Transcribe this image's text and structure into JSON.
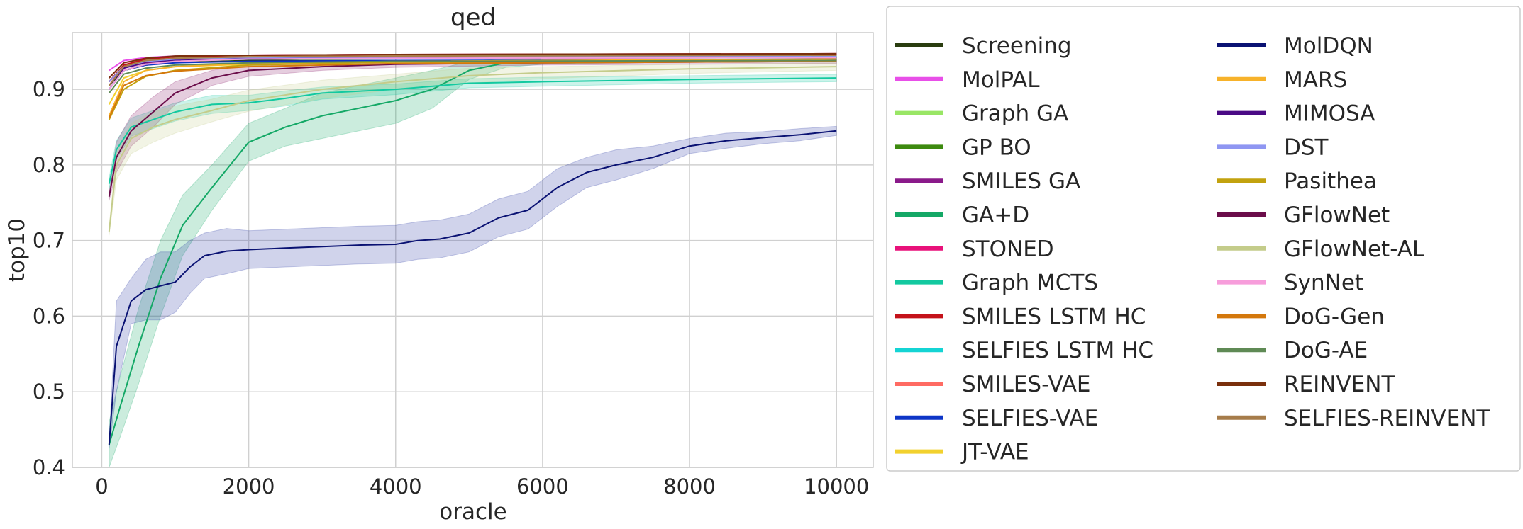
{
  "chart_data": {
    "type": "line",
    "title": "qed",
    "xlabel": "oracle",
    "ylabel": "top10",
    "xlim": [
      -400,
      10500
    ],
    "ylim": [
      0.4,
      0.975
    ],
    "xticks": [
      0,
      2000,
      4000,
      6000,
      8000,
      10000
    ],
    "xtick_labels": [
      "0",
      "2000",
      "4000",
      "6000",
      "8000",
      "10000"
    ],
    "yticks": [
      0.4,
      0.5,
      0.6,
      0.7,
      0.8,
      0.9
    ],
    "ytick_labels": [
      "0.4",
      "0.5",
      "0.6",
      "0.7",
      "0.8",
      "0.9"
    ],
    "grid": true,
    "legend_position": "outside-right",
    "series": [
      {
        "name": "Screening",
        "color": "#2a3d10",
        "x": [
          100,
          300,
          600,
          1000,
          2000,
          4000,
          10000
        ],
        "y": [
          0.905,
          0.925,
          0.932,
          0.936,
          0.938,
          0.938,
          0.938
        ]
      },
      {
        "name": "MolPAL",
        "color": "#e84fe8",
        "x": [
          100,
          300,
          600,
          1000,
          2000,
          4000,
          10000
        ],
        "y": [
          0.925,
          0.938,
          0.942,
          0.944,
          0.945,
          0.946,
          0.947
        ]
      },
      {
        "name": "Graph GA",
        "color": "#99e665",
        "x": [
          100,
          300,
          600,
          1000,
          2000,
          4000,
          10000
        ],
        "y": [
          0.91,
          0.932,
          0.939,
          0.942,
          0.944,
          0.945,
          0.946
        ]
      },
      {
        "name": "GP BO",
        "color": "#3d8a0f",
        "x": [
          100,
          300,
          600,
          1000,
          2000,
          4000,
          10000
        ],
        "y": [
          0.9,
          0.925,
          0.933,
          0.937,
          0.94,
          0.941,
          0.943
        ]
      },
      {
        "name": "SMILES GA",
        "color": "#8a1a8a",
        "x": [
          100,
          300,
          600,
          1000,
          2000,
          4000,
          10000
        ],
        "y": [
          0.91,
          0.928,
          0.935,
          0.938,
          0.94,
          0.941,
          0.942
        ]
      },
      {
        "name": "GA+D",
        "color": "#14a866",
        "x": [
          100,
          250,
          500,
          800,
          1100,
          1500,
          2000,
          2500,
          3000,
          3500,
          4000,
          4500,
          5000,
          5500,
          6000,
          7000,
          8000,
          9000,
          10000
        ],
        "y": [
          0.43,
          0.48,
          0.56,
          0.65,
          0.72,
          0.77,
          0.83,
          0.85,
          0.865,
          0.875,
          0.885,
          0.9,
          0.925,
          0.935,
          0.937,
          0.938,
          0.939,
          0.939,
          0.94
        ],
        "band": [
          0.03,
          0.04,
          0.05,
          0.05,
          0.04,
          0.03,
          0.025,
          0.025,
          0.03,
          0.03,
          0.03,
          0.025,
          0.012,
          0.006,
          0.004,
          0.003,
          0.003,
          0.003,
          0.003
        ],
        "band_color": "#14a866"
      },
      {
        "name": "STONED",
        "color": "#e8117a",
        "x": [
          100,
          300,
          600,
          1000,
          2000,
          4000,
          10000
        ],
        "y": [
          0.915,
          0.935,
          0.941,
          0.943,
          0.945,
          0.946,
          0.946
        ]
      },
      {
        "name": "Graph MCTS",
        "color": "#13c9a0",
        "x": [
          100,
          200,
          400,
          700,
          1000,
          1500,
          2000,
          2500,
          3000,
          4000,
          5000,
          6000,
          8000,
          10000
        ],
        "y": [
          0.775,
          0.82,
          0.85,
          0.86,
          0.87,
          0.88,
          0.882,
          0.888,
          0.895,
          0.9,
          0.908,
          0.91,
          0.913,
          0.915
        ],
        "band": [
          0.008,
          0.012,
          0.012,
          0.012,
          0.012,
          0.012,
          0.01,
          0.01,
          0.008,
          0.007,
          0.006,
          0.006,
          0.005,
          0.005
        ],
        "band_color": "#13c9a0"
      },
      {
        "name": "SMILES LSTM HC",
        "color": "#c4121a",
        "x": [
          100,
          300,
          600,
          1000,
          2000,
          4000,
          10000
        ],
        "y": [
          0.91,
          0.932,
          0.94,
          0.943,
          0.945,
          0.946,
          0.947
        ]
      },
      {
        "name": "SELFIES LSTM HC",
        "color": "#14d4d4",
        "x": [
          100,
          300,
          600,
          1000,
          2000,
          4000,
          10000
        ],
        "y": [
          0.9,
          0.925,
          0.933,
          0.937,
          0.94,
          0.942,
          0.944
        ]
      },
      {
        "name": "SMILES-VAE",
        "color": "#ff6b63",
        "x": [
          100,
          300,
          600,
          1000,
          2000,
          4000,
          10000
        ],
        "y": [
          0.905,
          0.93,
          0.937,
          0.94,
          0.943,
          0.944,
          0.945
        ]
      },
      {
        "name": "SELFIES-VAE",
        "color": "#0d35c7",
        "x": [
          100,
          300,
          600,
          1000,
          2000,
          4000,
          10000
        ],
        "y": [
          0.9,
          0.925,
          0.932,
          0.935,
          0.937,
          0.938,
          0.939
        ]
      },
      {
        "name": "JT-VAE",
        "color": "#f2d12e",
        "x": [
          100,
          300,
          600,
          1000,
          2000,
          4000,
          10000
        ],
        "y": [
          0.88,
          0.915,
          0.925,
          0.93,
          0.933,
          0.936,
          0.938
        ]
      },
      {
        "name": "MolDQN",
        "color": "#0a1273",
        "x": [
          100,
          200,
          400,
          600,
          800,
          1000,
          1200,
          1400,
          1700,
          2000,
          2500,
          3000,
          3500,
          4000,
          4300,
          4600,
          5000,
          5400,
          5800,
          6200,
          6600,
          7000,
          7500,
          8000,
          8500,
          9000,
          9500,
          10000
        ],
        "y": [
          0.43,
          0.56,
          0.62,
          0.635,
          0.64,
          0.645,
          0.665,
          0.68,
          0.686,
          0.688,
          0.69,
          0.692,
          0.694,
          0.695,
          0.7,
          0.702,
          0.71,
          0.73,
          0.74,
          0.77,
          0.79,
          0.8,
          0.81,
          0.825,
          0.832,
          0.836,
          0.84,
          0.845
        ],
        "band": [
          0.005,
          0.06,
          0.03,
          0.04,
          0.045,
          0.04,
          0.035,
          0.03,
          0.03,
          0.025,
          0.025,
          0.025,
          0.025,
          0.025,
          0.025,
          0.025,
          0.025,
          0.025,
          0.025,
          0.025,
          0.02,
          0.02,
          0.015,
          0.01,
          0.01,
          0.008,
          0.008,
          0.006
        ],
        "band_color": "#2836a3"
      },
      {
        "name": "MARS",
        "color": "#f7b22a",
        "x": [
          100,
          300,
          600,
          1000,
          2000,
          4000,
          10000
        ],
        "y": [
          0.865,
          0.91,
          0.925,
          0.93,
          0.934,
          0.937,
          0.94
        ]
      },
      {
        "name": "MIMOSA",
        "color": "#4a0a85",
        "x": [
          100,
          300,
          600,
          1000,
          2000,
          4000,
          10000
        ],
        "y": [
          0.905,
          0.928,
          0.936,
          0.939,
          0.941,
          0.942,
          0.942
        ]
      },
      {
        "name": "DST",
        "color": "#8f96f2",
        "x": [
          100,
          300,
          600,
          1000,
          2000,
          4000,
          10000
        ],
        "y": [
          0.91,
          0.93,
          0.937,
          0.94,
          0.942,
          0.943,
          0.944
        ]
      },
      {
        "name": "Pasithea",
        "color": "#c2a20f",
        "x": [
          100,
          300,
          600,
          1000,
          2000,
          4000,
          10000
        ],
        "y": [
          0.86,
          0.9,
          0.917,
          0.925,
          0.932,
          0.936,
          0.938
        ]
      },
      {
        "name": "GFlowNet",
        "color": "#6b0d4a",
        "x": [
          100,
          200,
          400,
          700,
          1000,
          1500,
          2000,
          3000,
          4000,
          6000,
          10000
        ],
        "y": [
          0.758,
          0.81,
          0.845,
          0.87,
          0.895,
          0.915,
          0.925,
          0.93,
          0.933,
          0.935,
          0.937
        ],
        "band": [
          0.005,
          0.02,
          0.02,
          0.02,
          0.015,
          0.01,
          0.008,
          0.005,
          0.004,
          0.003,
          0.003
        ],
        "band_color": "#8a1a6a"
      },
      {
        "name": "GFlowNet-AL",
        "color": "#c4cc8a",
        "x": [
          100,
          200,
          400,
          700,
          1000,
          1500,
          2000,
          3000,
          4000,
          5000,
          6000,
          8000,
          10000
        ],
        "y": [
          0.712,
          0.8,
          0.835,
          0.85,
          0.86,
          0.872,
          0.885,
          0.9,
          0.91,
          0.918,
          0.922,
          0.927,
          0.93
        ],
        "band": [
          0.005,
          0.02,
          0.02,
          0.02,
          0.018,
          0.015,
          0.014,
          0.012,
          0.01,
          0.01,
          0.008,
          0.006,
          0.005
        ],
        "band_color": "#c4cc8a"
      },
      {
        "name": "SynNet",
        "color": "#f79ddb",
        "x": [
          100,
          300,
          600,
          1000,
          2000,
          4000,
          10000
        ],
        "y": [
          0.9,
          0.925,
          0.933,
          0.937,
          0.94,
          0.941,
          0.942
        ]
      },
      {
        "name": "DoG-Gen",
        "color": "#d4780c",
        "x": [
          100,
          300,
          600,
          1000,
          2000,
          4000,
          10000
        ],
        "y": [
          0.862,
          0.905,
          0.918,
          0.924,
          0.93,
          0.934,
          0.937
        ]
      },
      {
        "name": "DoG-AE",
        "color": "#5f8a55",
        "x": [
          100,
          300,
          600,
          1000,
          2000,
          4000,
          10000
        ],
        "y": [
          0.895,
          0.92,
          0.928,
          0.932,
          0.935,
          0.937,
          0.938
        ]
      },
      {
        "name": "REINVENT",
        "color": "#7a300d",
        "x": [
          100,
          300,
          600,
          1000,
          2000,
          4000,
          10000
        ],
        "y": [
          0.915,
          0.935,
          0.941,
          0.944,
          0.945,
          0.946,
          0.947
        ]
      },
      {
        "name": "SELFIES-REINVENT",
        "color": "#a67c4a",
        "x": [
          100,
          300,
          600,
          1000,
          2000,
          4000,
          10000
        ],
        "y": [
          0.905,
          0.93,
          0.938,
          0.941,
          0.943,
          0.944,
          0.945
        ]
      }
    ]
  }
}
